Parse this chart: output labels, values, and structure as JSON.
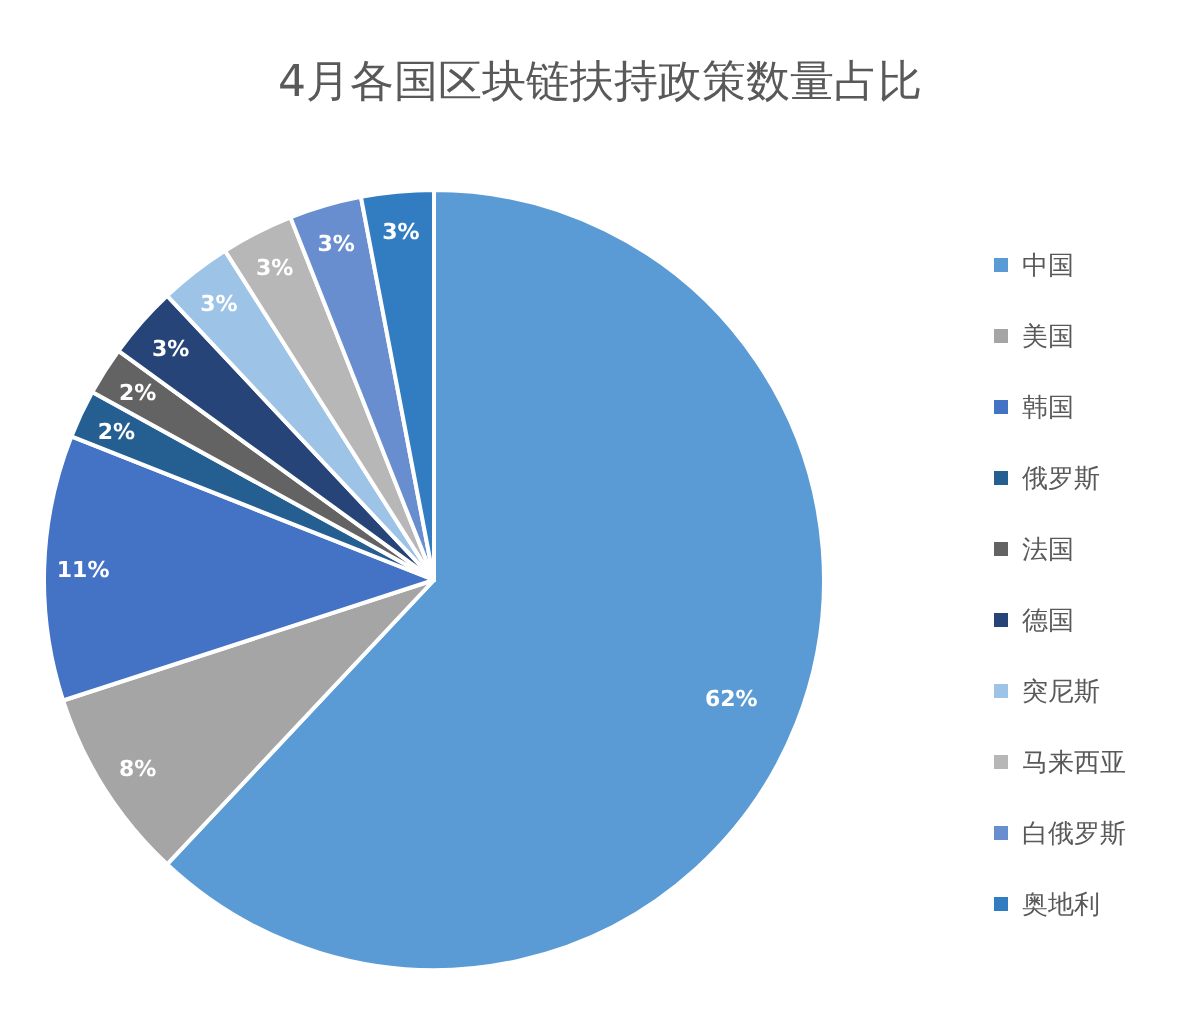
{
  "chart_data": {
    "type": "pie",
    "title": "4月各国区块链扶持政策数量占比",
    "categories": [
      "中国",
      "美国",
      "韩国",
      "俄罗斯",
      "法国",
      "德国",
      "突尼斯",
      "马来西亚",
      "白俄罗斯",
      "奥地利"
    ],
    "values": [
      62,
      8,
      11,
      2,
      2,
      3,
      3,
      3,
      3,
      3
    ],
    "colors": [
      "#5b9bd5",
      "#a5a5a5",
      "#4472c4",
      "#255e91",
      "#636363",
      "#264478",
      "#9dc3e6",
      "#b7b7b7",
      "#698ed0",
      "#327dc2"
    ],
    "value_labels": [
      "62%",
      "8%",
      "11%",
      "2%",
      "2%",
      "3%",
      "3%",
      "3%",
      "3%",
      "3%"
    ],
    "legend": "right"
  }
}
